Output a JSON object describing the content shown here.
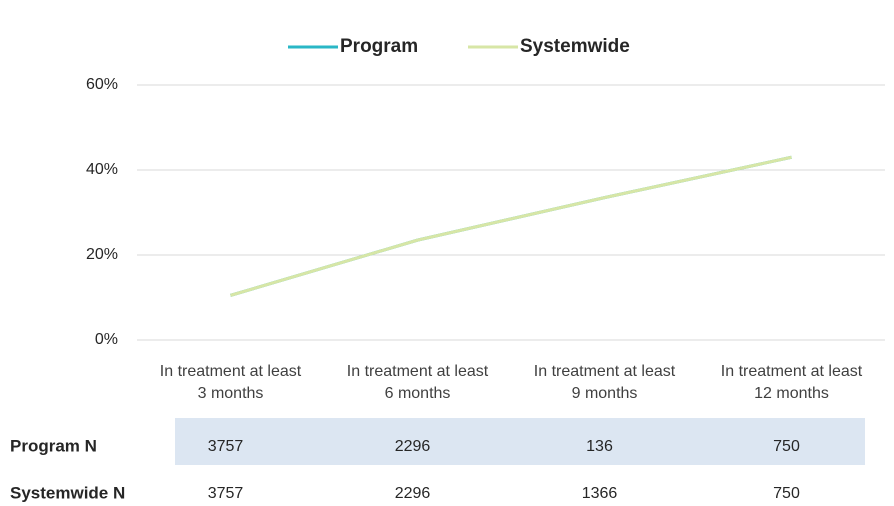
{
  "chart_data": {
    "type": "line",
    "categories": [
      "In treatment at least 3 months",
      "In treatment at least 6 months",
      "In treatment at least 9 months",
      "In treatment at least 12 months"
    ],
    "series": [
      {
        "name": "Program",
        "color": "#2ab7c6",
        "values": [
          10.5,
          23.5,
          33.5,
          43
        ]
      },
      {
        "name": "Systemwide",
        "color": "#d7e6a6",
        "values": [
          10.5,
          23.5,
          33.5,
          43
        ]
      }
    ],
    "ylim": [
      0,
      60
    ],
    "yticks": [
      {
        "value": 0,
        "label": "0%"
      },
      {
        "value": 20,
        "label": "20%"
      },
      {
        "value": 40,
        "label": "40%"
      },
      {
        "value": 60,
        "label": "60%"
      }
    ],
    "grid": true,
    "legend": "top",
    "table": {
      "rows": [
        {
          "label": "Program N",
          "values": [
            "3757",
            "2296",
            "136",
            "750"
          ]
        },
        {
          "label": "Systemwide N",
          "values": [
            "3757",
            "2296",
            "1366",
            "750"
          ]
        }
      ]
    }
  }
}
